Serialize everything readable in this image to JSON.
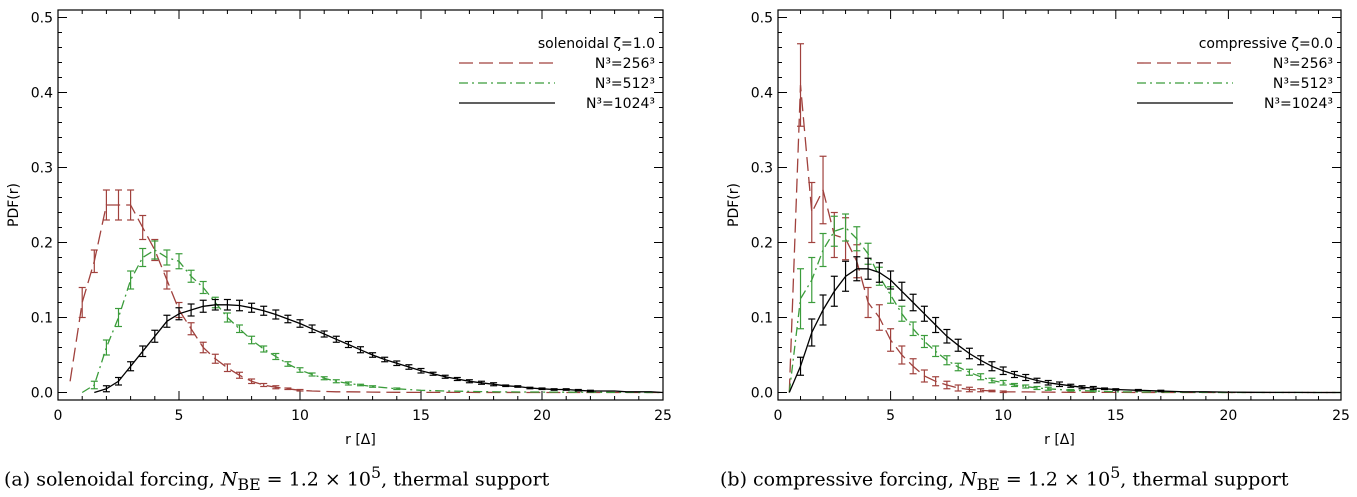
{
  "chart_data": [
    {
      "type": "line",
      "xlabel": "r [Δ]",
      "ylabel": "PDF(r)",
      "xlim": [
        0,
        25
      ],
      "ylim": [
        -0.01,
        0.51
      ],
      "xticks": [
        0,
        5,
        10,
        15,
        20,
        25
      ],
      "yticks": [
        0.0,
        0.1,
        0.2,
        0.3,
        0.4,
        0.5
      ],
      "ytick_labels": [
        "0.0",
        "0.1",
        "0.2",
        "0.3",
        "0.4",
        "0.5"
      ],
      "legend_title": "solenoidal ζ=1.0",
      "legend_position": "top-right",
      "caption": "(a) solenoidal forcing, N_BE = 1.2 × 10^5, thermal support",
      "caption_parts": {
        "pre": "(a) solenoidal forcing, ",
        "var": "N",
        "sub": "BE",
        "mid": " = 1.2 × 10",
        "sup": "5",
        "post": ", thermal support"
      },
      "series": [
        {
          "name": "N³=256³",
          "color": "#a0413d",
          "dash": "long-dash",
          "x": [
            0.5,
            1,
            1.5,
            2,
            2.5,
            3,
            3.5,
            4,
            4.5,
            5,
            5.5,
            6,
            6.5,
            7,
            7.5,
            8,
            8.5,
            9,
            9.5,
            10,
            10.5,
            11,
            11.5,
            12,
            13,
            14,
            15,
            17,
            20,
            25
          ],
          "y": [
            0.015,
            0.12,
            0.175,
            0.25,
            0.25,
            0.25,
            0.22,
            0.19,
            0.15,
            0.11,
            0.085,
            0.06,
            0.045,
            0.033,
            0.023,
            0.015,
            0.01,
            0.007,
            0.005,
            0.003,
            0.002,
            0.0015,
            0.001,
            0.001,
            0.0005,
            0.0003,
            0.0002,
            0.0001,
            0.0,
            0.0
          ],
          "err": [
            0,
            0.02,
            0.015,
            0.02,
            0.02,
            0.02,
            0.016,
            0.014,
            0.012,
            0.01,
            0.008,
            0.007,
            0.006,
            0.005,
            0.004,
            0.003,
            0.002,
            0.002,
            0.001,
            0.001,
            0,
            0,
            0,
            0,
            0,
            0,
            0,
            0,
            0,
            0
          ]
        },
        {
          "name": "N³=512³",
          "color": "#3b9c3b",
          "dash": "dash-dot",
          "x": [
            1,
            1.5,
            2,
            2.5,
            3,
            3.5,
            4,
            4.5,
            5,
            5.5,
            6,
            6.5,
            7,
            7.5,
            8,
            8.5,
            9,
            9.5,
            10,
            10.5,
            11,
            11.5,
            12,
            12.5,
            13,
            14,
            15,
            16,
            18,
            20,
            25
          ],
          "y": [
            0.0,
            0.01,
            0.06,
            0.1,
            0.15,
            0.18,
            0.19,
            0.18,
            0.175,
            0.155,
            0.14,
            0.12,
            0.1,
            0.085,
            0.07,
            0.058,
            0.048,
            0.038,
            0.03,
            0.024,
            0.019,
            0.015,
            0.012,
            0.01,
            0.008,
            0.005,
            0.003,
            0.002,
            0.001,
            0.0005,
            0.0
          ],
          "err": [
            0,
            0.005,
            0.01,
            0.012,
            0.012,
            0.012,
            0.012,
            0.01,
            0.01,
            0.008,
            0.008,
            0.007,
            0.006,
            0.005,
            0.005,
            0.004,
            0.004,
            0.003,
            0.003,
            0.002,
            0.002,
            0.002,
            0.002,
            0.001,
            0.001,
            0.001,
            0,
            0,
            0,
            0,
            0
          ]
        },
        {
          "name": "N³=1024³",
          "color": "#000000",
          "dash": "solid",
          "x": [
            1.5,
            2,
            2.5,
            3,
            3.5,
            4,
            4.5,
            5,
            5.5,
            6,
            6.5,
            7,
            7.5,
            8,
            8.5,
            9,
            9.5,
            10,
            10.5,
            11,
            11.5,
            12,
            12.5,
            13,
            13.5,
            14,
            14.5,
            15,
            15.5,
            16,
            16.5,
            17,
            17.5,
            18,
            18.5,
            19,
            19.5,
            20,
            20.5,
            21,
            21.5,
            22,
            22.5,
            23,
            23.5,
            24,
            24.5,
            25
          ],
          "y": [
            0.0,
            0.005,
            0.015,
            0.035,
            0.055,
            0.075,
            0.095,
            0.105,
            0.11,
            0.115,
            0.117,
            0.117,
            0.116,
            0.113,
            0.109,
            0.104,
            0.098,
            0.092,
            0.085,
            0.078,
            0.071,
            0.064,
            0.057,
            0.05,
            0.044,
            0.039,
            0.034,
            0.029,
            0.025,
            0.021,
            0.018,
            0.015,
            0.013,
            0.011,
            0.009,
            0.008,
            0.006,
            0.005,
            0.004,
            0.004,
            0.003,
            0.002,
            0.002,
            0.002,
            0.001,
            0.001,
            0.001,
            0.0
          ],
          "err": [
            0,
            0.004,
            0.005,
            0.006,
            0.007,
            0.008,
            0.008,
            0.008,
            0.008,
            0.008,
            0.007,
            0.007,
            0.007,
            0.006,
            0.006,
            0.006,
            0.005,
            0.005,
            0.005,
            0.004,
            0.004,
            0.004,
            0.004,
            0.003,
            0.003,
            0.003,
            0.003,
            0.003,
            0.002,
            0.002,
            0.002,
            0.002,
            0.002,
            0.002,
            0.001,
            0.001,
            0.001,
            0.001,
            0.001,
            0.001,
            0.001,
            0.001,
            0,
            0,
            0,
            0,
            0,
            0
          ]
        }
      ]
    },
    {
      "type": "line",
      "xlabel": "r [Δ]",
      "ylabel": "PDF(r)",
      "xlim": [
        0,
        25
      ],
      "ylim": [
        -0.01,
        0.51
      ],
      "xticks": [
        0,
        5,
        10,
        15,
        20,
        25
      ],
      "yticks": [
        0.0,
        0.1,
        0.2,
        0.3,
        0.4,
        0.5
      ],
      "ytick_labels": [
        "0.0",
        "0.1",
        "0.2",
        "0.3",
        "0.4",
        "0.5"
      ],
      "legend_title": "compressive ζ=0.0",
      "legend_position": "top-right",
      "caption": "(b) compressive forcing, N_BE = 1.2 × 10^5, thermal support",
      "caption_parts": {
        "pre": "(b) compressive forcing, ",
        "var": "N",
        "sub": "BE",
        "mid": " = 1.2 × 10",
        "sup": "5",
        "post": ", thermal support"
      },
      "series": [
        {
          "name": "N³=256³",
          "color": "#a0413d",
          "dash": "long-dash",
          "x": [
            0.5,
            1,
            1.5,
            2,
            2.5,
            3,
            3.5,
            4,
            4.5,
            5,
            5.5,
            6,
            6.5,
            7,
            7.5,
            8,
            8.5,
            9,
            9.5,
            10,
            11,
            12,
            13,
            15,
            20,
            25
          ],
          "y": [
            0.0,
            0.41,
            0.24,
            0.27,
            0.21,
            0.205,
            0.175,
            0.12,
            0.1,
            0.07,
            0.05,
            0.035,
            0.022,
            0.015,
            0.01,
            0.006,
            0.004,
            0.003,
            0.002,
            0.001,
            0.0008,
            0.0005,
            0.0003,
            0.0001,
            0.0,
            0.0
          ],
          "err": [
            0,
            0.055,
            0.04,
            0.045,
            0.03,
            0.028,
            0.022,
            0.02,
            0.017,
            0.015,
            0.012,
            0.01,
            0.008,
            0.006,
            0.005,
            0.004,
            0.003,
            0.002,
            0.001,
            0.001,
            0,
            0,
            0,
            0,
            0,
            0
          ]
        },
        {
          "name": "N³=512³",
          "color": "#3b9c3b",
          "dash": "dash-dot",
          "x": [
            0.5,
            1,
            1.5,
            2,
            2.5,
            3,
            3.5,
            4,
            4.5,
            5,
            5.5,
            6,
            6.5,
            7,
            7.5,
            8,
            8.5,
            9,
            9.5,
            10,
            10.5,
            11,
            11.5,
            12,
            13,
            14,
            15,
            17,
            20,
            25
          ],
          "y": [
            0.0,
            0.125,
            0.15,
            0.19,
            0.215,
            0.22,
            0.205,
            0.185,
            0.155,
            0.13,
            0.105,
            0.085,
            0.068,
            0.055,
            0.043,
            0.034,
            0.027,
            0.021,
            0.016,
            0.013,
            0.01,
            0.008,
            0.006,
            0.005,
            0.003,
            0.002,
            0.001,
            0.0005,
            0.0,
            0.0
          ],
          "err": [
            0,
            0.04,
            0.03,
            0.022,
            0.02,
            0.018,
            0.016,
            0.014,
            0.012,
            0.011,
            0.01,
            0.009,
            0.008,
            0.007,
            0.006,
            0.005,
            0.004,
            0.004,
            0.003,
            0.003,
            0.002,
            0.002,
            0.002,
            0.002,
            0.001,
            0.001,
            0,
            0,
            0,
            0
          ]
        },
        {
          "name": "N³=1024³",
          "color": "#000000",
          "dash": "solid",
          "x": [
            0.5,
            1,
            1.5,
            2,
            2.5,
            3,
            3.5,
            4,
            4.5,
            5,
            5.5,
            6,
            6.5,
            7,
            7.5,
            8,
            8.5,
            9,
            9.5,
            10,
            10.5,
            11,
            11.5,
            12,
            12.5,
            13,
            13.5,
            14,
            14.5,
            15,
            16,
            17,
            18,
            19,
            20,
            21,
            22,
            23,
            24,
            25
          ],
          "y": [
            0.0,
            0.035,
            0.08,
            0.11,
            0.135,
            0.155,
            0.165,
            0.165,
            0.16,
            0.15,
            0.135,
            0.12,
            0.105,
            0.09,
            0.075,
            0.063,
            0.052,
            0.043,
            0.035,
            0.029,
            0.024,
            0.02,
            0.016,
            0.013,
            0.011,
            0.009,
            0.007,
            0.006,
            0.005,
            0.004,
            0.003,
            0.002,
            0.001,
            0.001,
            0.0005,
            0.0003,
            0.0002,
            0.0001,
            0.0,
            0.0
          ],
          "err": [
            0,
            0.012,
            0.018,
            0.02,
            0.02,
            0.02,
            0.016,
            0.014,
            0.013,
            0.012,
            0.012,
            0.011,
            0.01,
            0.01,
            0.009,
            0.008,
            0.007,
            0.006,
            0.006,
            0.005,
            0.004,
            0.004,
            0.003,
            0.003,
            0.003,
            0.002,
            0.002,
            0.002,
            0.001,
            0.001,
            0.001,
            0.001,
            0,
            0,
            0,
            0,
            0,
            0,
            0,
            0
          ]
        }
      ]
    }
  ]
}
